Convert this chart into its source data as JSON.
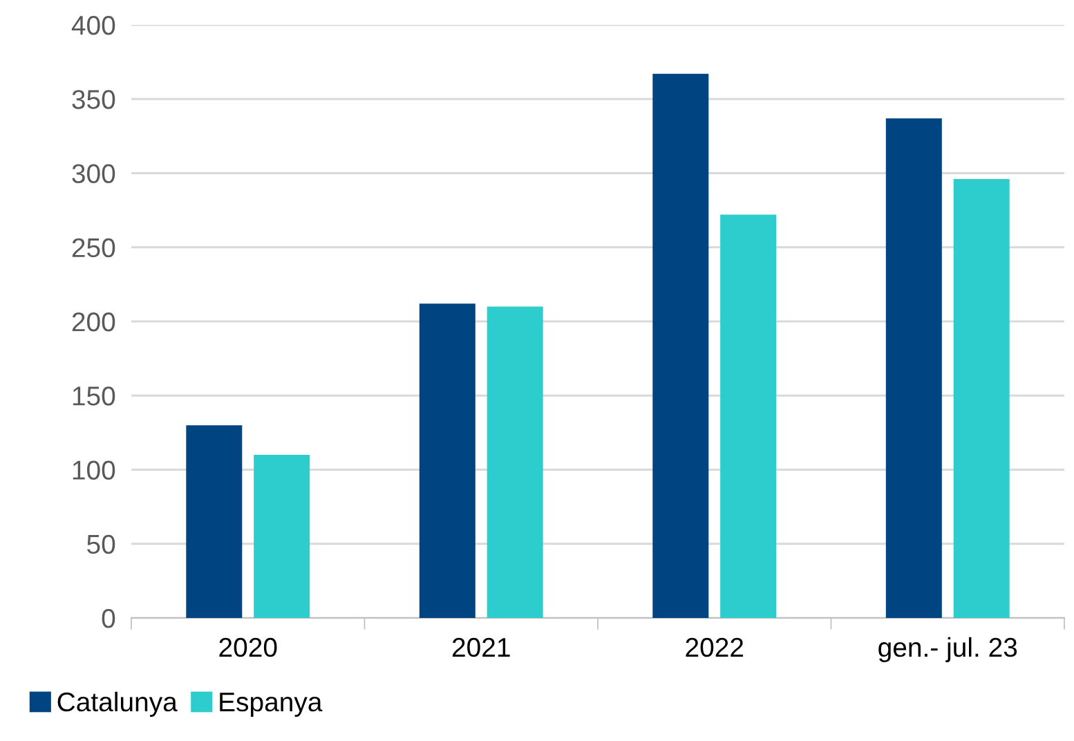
{
  "chart_data": {
    "type": "bar",
    "categories": [
      "2020",
      "2021",
      "2022",
      "gen.- jul. 23"
    ],
    "series": [
      {
        "name": "Catalunya",
        "color": "#004481",
        "values": [
          130,
          212,
          367,
          337
        ]
      },
      {
        "name": "Espanya",
        "color": "#2dcccd",
        "values": [
          110,
          210,
          272,
          296
        ]
      }
    ],
    "ylim": [
      0,
      400
    ],
    "yticks": [
      0,
      50,
      100,
      150,
      200,
      250,
      300,
      350,
      400
    ],
    "grid": "y",
    "legend": "bottom left"
  }
}
